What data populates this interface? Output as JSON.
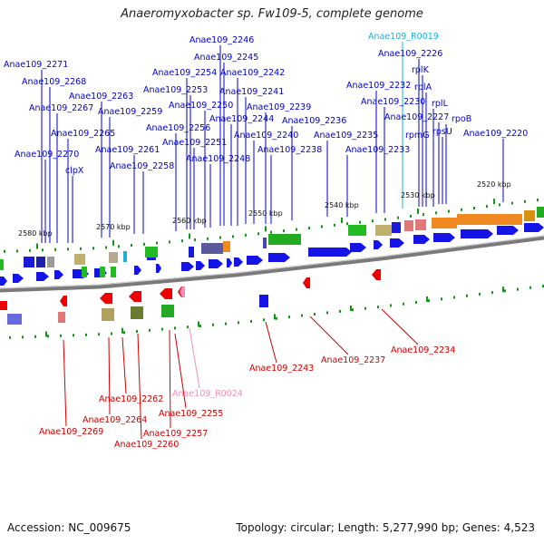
{
  "title": "Anaeromyxobacter sp. Fw109-5, complete genome",
  "footer": {
    "accession": "Accession: NC_009675",
    "meta": "Topology: circular; Length: 5,277,990 bp; Genes: 4,523"
  },
  "colors": {
    "forward_label": "#0000cc",
    "reverse_label": "#cc0000",
    "rna_forward": "#1ab0d8",
    "rna_reverse": "#f08cc0",
    "backbone": "#888888",
    "tick": "#119911"
  },
  "scale_labels": [
    "2580 kbp",
    "2570 kbp",
    "2560 kbp",
    "2550 kbp",
    "2540 kbp",
    "2530 kbp",
    "2520 kbp"
  ],
  "top_labels": [
    {
      "text": "Anae109_2271",
      "kind": "gene"
    },
    {
      "text": "Anae109_2268",
      "kind": "gene"
    },
    {
      "text": "Anae109_2267",
      "kind": "gene"
    },
    {
      "text": "Anae109_2265",
      "kind": "gene"
    },
    {
      "text": "Anae109_2270",
      "kind": "gene"
    },
    {
      "text": "clpX",
      "kind": "gene"
    },
    {
      "text": "Anae109_2263",
      "kind": "gene"
    },
    {
      "text": "Anae109_2259",
      "kind": "gene"
    },
    {
      "text": "Anae109_2261",
      "kind": "gene"
    },
    {
      "text": "Anae109_2258",
      "kind": "gene"
    },
    {
      "text": "Anae109_2256",
      "kind": "gene"
    },
    {
      "text": "Anae109_2254",
      "kind": "gene"
    },
    {
      "text": "Anae109_2253",
      "kind": "gene"
    },
    {
      "text": "Anae109_2251",
      "kind": "gene"
    },
    {
      "text": "Anae109_2250",
      "kind": "gene"
    },
    {
      "text": "Anae109_2248",
      "kind": "gene"
    },
    {
      "text": "Anae109_2246",
      "kind": "gene"
    },
    {
      "text": "Anae109_2245",
      "kind": "gene"
    },
    {
      "text": "Anae109_2244",
      "kind": "gene"
    },
    {
      "text": "Anae109_2242",
      "kind": "gene"
    },
    {
      "text": "Anae109_2241",
      "kind": "gene"
    },
    {
      "text": "Anae109_2240",
      "kind": "gene"
    },
    {
      "text": "Anae109_2239",
      "kind": "gene"
    },
    {
      "text": "Anae109_2238",
      "kind": "gene"
    },
    {
      "text": "Anae109_2236",
      "kind": "gene"
    },
    {
      "text": "Anae109_2235",
      "kind": "gene"
    },
    {
      "text": "Anae109_2233",
      "kind": "gene"
    },
    {
      "text": "Anae109_2232",
      "kind": "gene"
    },
    {
      "text": "Anae109_2230",
      "kind": "gene"
    },
    {
      "text": "Anae109_R0019",
      "kind": "rna"
    },
    {
      "text": "Anae109_2226",
      "kind": "gene"
    },
    {
      "text": "rplK",
      "kind": "gene"
    },
    {
      "text": "rplA",
      "kind": "gene"
    },
    {
      "text": "rplL",
      "kind": "gene"
    },
    {
      "text": "Anae109_2227",
      "kind": "gene"
    },
    {
      "text": "rpmG",
      "kind": "gene"
    },
    {
      "text": "rpsU",
      "kind": "gene"
    },
    {
      "text": "rpoB",
      "kind": "gene"
    },
    {
      "text": "Anae109_2220",
      "kind": "gene"
    }
  ],
  "bottom_labels": [
    {
      "text": "Anae109_2243",
      "kind": "gene"
    },
    {
      "text": "Anae109_2237",
      "kind": "gene"
    },
    {
      "text": "Anae109_2234",
      "kind": "gene"
    },
    {
      "text": "Anae109_R0024",
      "kind": "rna"
    },
    {
      "text": "Anae109_2262",
      "kind": "gene"
    },
    {
      "text": "Anae109_2255",
      "kind": "gene"
    },
    {
      "text": "Anae109_2264",
      "kind": "gene"
    },
    {
      "text": "Anae109_2269",
      "kind": "gene"
    },
    {
      "text": "Anae109_2257",
      "kind": "gene"
    },
    {
      "text": "Anae109_2260",
      "kind": "gene"
    }
  ]
}
